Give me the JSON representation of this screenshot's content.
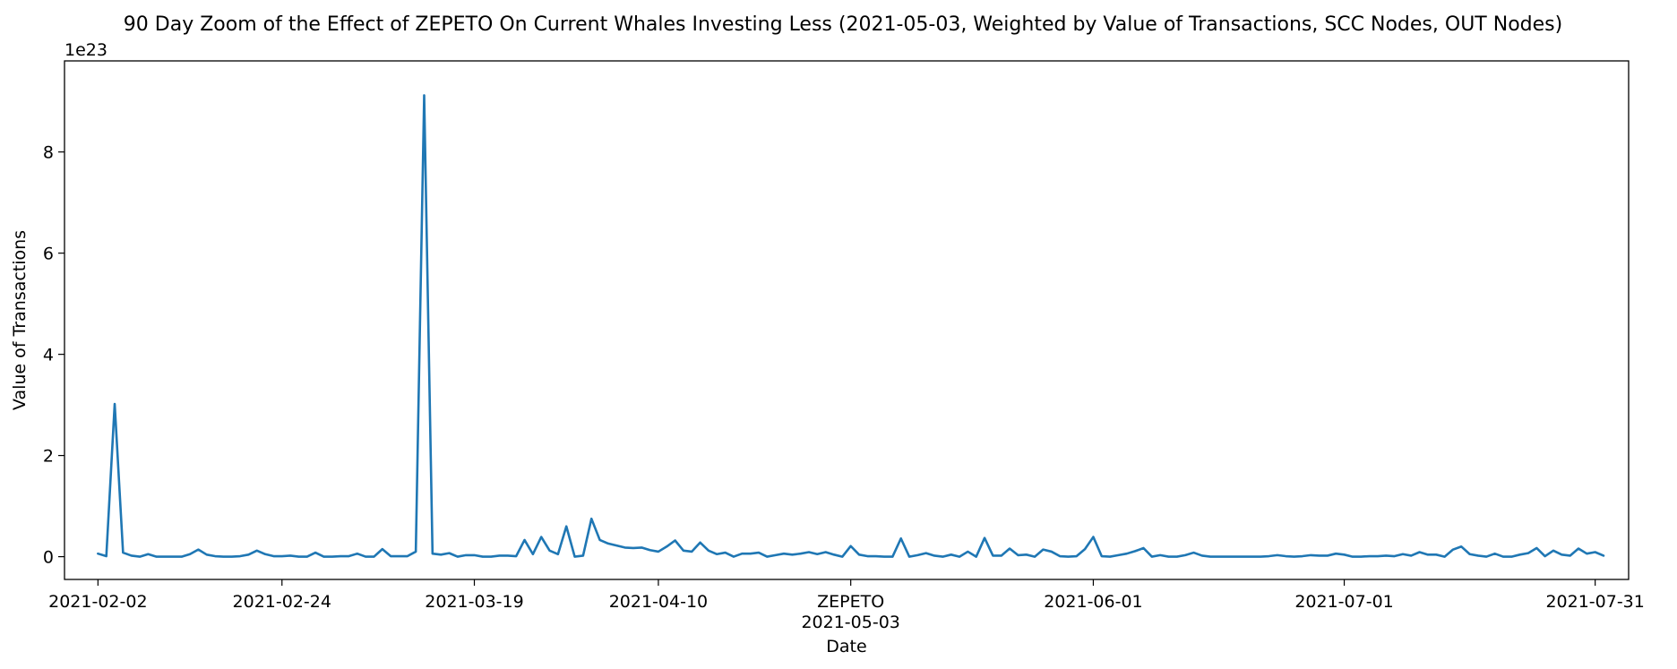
{
  "chart_data": {
    "type": "line",
    "title": "90 Day Zoom of the Effect of ZEPETO On Current Whales Investing Less (2021-05-03, Weighted by Value of Transactions, SCC Nodes, OUT Nodes)",
    "xlabel": "Date",
    "ylabel": "Value of Transactions",
    "y_offset_label": "1e23",
    "y_unit_multiplier": 1e+23,
    "ylim": [
      -0.45,
      9.8
    ],
    "xlim": [
      "2021-01-29",
      "2021-08-04"
    ],
    "grid": false,
    "legend": "none",
    "x_tick_labels": [
      "2021-02-02",
      "2021-02-24",
      "2021-03-19",
      "2021-04-10",
      "2021-05-03",
      "2021-06-01",
      "2021-07-01",
      "2021-07-31"
    ],
    "event_label": "ZEPETO",
    "event_date": "2021-05-03",
    "y_tick_labels": [
      "0",
      "2",
      "4",
      "6",
      "8"
    ],
    "line_color": "#1f77b4",
    "series": [
      {
        "start_date": "2021-02-02",
        "values": [
          0.06,
          0.01,
          3.02,
          0.08,
          0.02,
          0.0,
          0.05,
          0.0,
          0.0,
          0.0,
          0.0,
          0.05,
          0.14,
          0.04,
          0.01,
          0.0,
          0.0,
          0.01,
          0.04,
          0.12,
          0.05,
          0.01,
          0.01,
          0.02,
          0.0,
          0.0,
          0.08,
          0.0,
          0.0,
          0.01,
          0.01,
          0.06,
          0.0,
          0.0,
          0.15,
          0.01,
          0.01,
          0.01,
          0.1,
          9.12,
          0.06,
          0.04,
          0.07,
          0.0,
          0.03,
          0.03,
          0.0,
          0.0,
          0.02,
          0.02,
          0.01,
          0.33,
          0.05,
          0.39,
          0.12,
          0.05,
          0.6,
          0.0,
          0.02,
          0.75,
          0.33,
          0.26,
          0.22,
          0.18,
          0.17,
          0.18,
          0.13,
          0.1,
          0.2,
          0.32,
          0.12,
          0.1,
          0.28,
          0.12,
          0.05,
          0.08,
          0.0,
          0.06,
          0.06,
          0.08,
          0.0,
          0.03,
          0.06,
          0.04,
          0.06,
          0.09,
          0.05,
          0.09,
          0.04,
          0.0,
          0.21,
          0.04,
          0.01,
          0.01,
          0.0,
          0.0,
          0.36,
          0.0,
          0.03,
          0.07,
          0.02,
          0.0,
          0.04,
          0.0,
          0.1,
          0.0,
          0.37,
          0.02,
          0.02,
          0.16,
          0.03,
          0.04,
          0.0,
          0.14,
          0.1,
          0.01,
          0.0,
          0.01,
          0.15,
          0.39,
          0.01,
          0.0,
          0.03,
          0.06,
          0.11,
          0.17,
          0.0,
          0.03,
          0.0,
          0.0,
          0.03,
          0.08,
          0.02,
          0.0,
          0.0,
          0.0,
          0.0,
          0.0,
          0.0,
          0.0,
          0.01,
          0.03,
          0.01,
          0.0,
          0.01,
          0.03,
          0.02,
          0.02,
          0.06,
          0.04,
          0.0,
          0.0,
          0.01,
          0.01,
          0.02,
          0.01,
          0.05,
          0.02,
          0.09,
          0.04,
          0.04,
          0.0,
          0.14,
          0.2,
          0.05,
          0.02,
          0.0,
          0.06,
          0.0,
          0.0,
          0.04,
          0.07,
          0.17,
          0.01,
          0.12,
          0.04,
          0.02,
          0.16,
          0.06,
          0.09,
          0.02
        ]
      }
    ]
  }
}
